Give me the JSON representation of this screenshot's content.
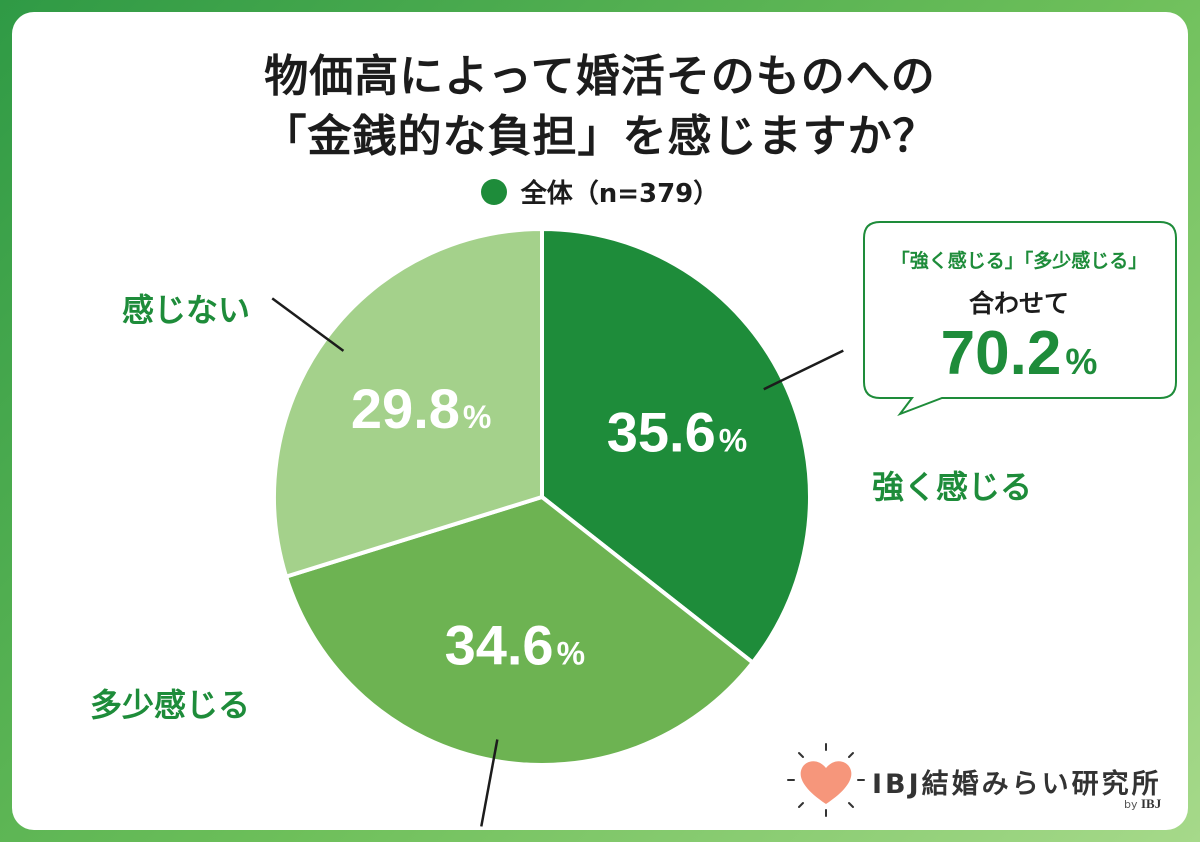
{
  "title": {
    "line1": "物価高によって婚活そのものへの",
    "line2": "「金銭的な負担」を感じますか？"
  },
  "legend": {
    "label": "全体（n=379）",
    "color": "#1e8c3a"
  },
  "chart_data": {
    "type": "pie",
    "title": "物価高によって婚活そのものへの「金銭的な負担」を感じますか？",
    "unit": "%",
    "slices": [
      {
        "label": "強く感じる",
        "value": 35.6,
        "color": "#1e8c3a"
      },
      {
        "label": "多少感じる",
        "value": 34.6,
        "color": "#6db352"
      },
      {
        "label": "感じない",
        "value": 29.8,
        "color": "#a4d18b"
      }
    ]
  },
  "callout": {
    "line1": "「強く感じる」「多少感じる」",
    "line2": "合わせて",
    "value": "70.2",
    "unit": "%"
  },
  "logo": {
    "name": "IBJ結婚みらい研究所",
    "by": "by",
    "brand": "IBJ",
    "icon": "heart-icon"
  }
}
